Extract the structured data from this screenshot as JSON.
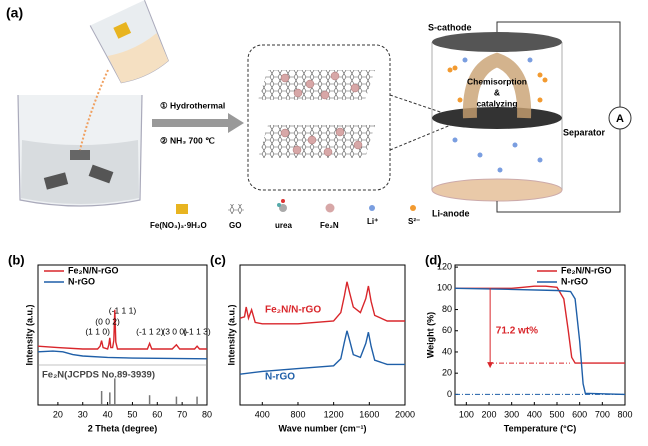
{
  "panel_a": {
    "label": "(a)",
    "steps": [
      "① Hydrothermal",
      "② NH₃ 700 ℃"
    ],
    "cell": {
      "cathode": "S-cathode",
      "mechanism": [
        "Chemisorption",
        "&",
        "catalyzing"
      ],
      "separator": "Separator",
      "anode": "Li-anode",
      "meter": "A"
    },
    "legend": [
      "Fe(NO₃)₃·9H₂O",
      "GO",
      "urea",
      "Fe₂N",
      "Li⁺",
      "S²⁻"
    ]
  },
  "chart_data": [
    {
      "type": "line",
      "label": "(b)",
      "xlabel": "2 Theta (degree)",
      "ylabel": "Intensity (a.u.)",
      "xlim": [
        12,
        80
      ],
      "xticks": [
        20,
        30,
        40,
        50,
        60,
        70,
        80
      ],
      "ylim": [
        0,
        100
      ],
      "legend": "upper left",
      "series": [
        {
          "name": "Fe₂N/N-rGO",
          "color": "#d9262b",
          "x": [
            12,
            20,
            30,
            36,
            37,
            37.6,
            38.2,
            40,
            40.5,
            40.9,
            41.3,
            42,
            42.5,
            42.9,
            43.3,
            44,
            50,
            56,
            56.9,
            57.8,
            66,
            67.7,
            69,
            75,
            76,
            77,
            80
          ],
          "values": [
            42,
            41,
            40,
            40,
            42,
            46,
            41,
            40,
            43,
            48,
            41,
            41,
            46,
            68,
            45,
            40,
            40,
            40,
            44,
            40,
            40,
            43,
            40,
            40,
            42,
            40,
            40
          ]
        },
        {
          "name": "N-rGO",
          "color": "#1f5fa8",
          "x": [
            12,
            18,
            22,
            26,
            30,
            40,
            50,
            80
          ],
          "values": [
            38,
            38.5,
            38,
            36,
            35,
            34,
            33.5,
            33
          ]
        }
      ],
      "reference": {
        "name": "Fe₂N(JCPDS No.89-3939)",
        "color": "#777777",
        "x": [
          37.6,
          40.9,
          42.9,
          56.9,
          67.7,
          76
        ],
        "values": [
          10,
          9,
          19,
          7,
          6,
          6
        ]
      },
      "annotations": [
        {
          "text": "(1 1 0)",
          "x": 36,
          "y": 52
        },
        {
          "text": "(0 0 2)",
          "x": 40,
          "y": 59
        },
        {
          "text": "(-1 1 1)",
          "x": 46,
          "y": 67
        },
        {
          "text": "(-1 1 2)",
          "x": 57,
          "y": 52
        },
        {
          "text": "(3 0 0)",
          "x": 67,
          "y": 52
        },
        {
          "text": "(-1 1 3)",
          "x": 76,
          "y": 52
        }
      ]
    },
    {
      "type": "line",
      "label": "(c)",
      "xlabel": "Wave number (cm⁻¹)",
      "ylabel": "Intensity (a.u.)",
      "xlim": [
        150,
        2000
      ],
      "xticks": [
        400,
        800,
        1200,
        1600,
        2000
      ],
      "ylim": [
        0,
        100
      ],
      "legend": "inline",
      "series": [
        {
          "name": "Fe₂N/N-rGO",
          "color": "#d9262b",
          "x": [
            150,
            200,
            220,
            245,
            280,
            320,
            400,
            800,
            1200,
            1280,
            1320,
            1350,
            1380,
            1420,
            1500,
            1560,
            1590,
            1620,
            1660,
            1800,
            2000
          ],
          "values": [
            62,
            63,
            70,
            62,
            68,
            59,
            58,
            58,
            60,
            66,
            78,
            88,
            80,
            70,
            66,
            76,
            85,
            74,
            64,
            60,
            60
          ]
        },
        {
          "name": "N-rGO",
          "color": "#1f5fa8",
          "x": [
            150,
            400,
            800,
            1200,
            1280,
            1320,
            1350,
            1380,
            1420,
            1500,
            1560,
            1590,
            1620,
            1660,
            1800,
            2000
          ],
          "values": [
            22,
            24,
            26,
            28,
            33,
            45,
            53,
            46,
            36,
            34,
            44,
            52,
            42,
            32,
            29,
            29
          ]
        }
      ]
    },
    {
      "type": "line",
      "label": "(d)",
      "xlabel": "Temperature (°C)",
      "ylabel": "Weight (%)",
      "xlim": [
        50,
        800
      ],
      "xticks": [
        100,
        200,
        300,
        400,
        500,
        600,
        700,
        800
      ],
      "ylim": [
        -10,
        122
      ],
      "yticks": [
        0,
        20,
        40,
        60,
        80,
        100,
        120
      ],
      "legend": "upper right",
      "series": [
        {
          "name": "Fe₂N/N-rGO",
          "color": "#d9262b",
          "x": [
            50,
            300,
            350,
            400,
            450,
            500,
            530,
            550,
            565,
            580,
            800
          ],
          "values": [
            100,
            100,
            101,
            102,
            102,
            101,
            90,
            60,
            35,
            29.5,
            29.5
          ]
        },
        {
          "name": "N-rGO",
          "color": "#1f5fa8",
          "x": [
            50,
            300,
            500,
            560,
            580,
            600,
            615,
            625,
            800
          ],
          "values": [
            100,
            99,
            98,
            97,
            90,
            50,
            10,
            1,
            0
          ]
        }
      ],
      "annotation": {
        "text": "71.2 wt%",
        "x": 230,
        "y": 60
      }
    }
  ]
}
